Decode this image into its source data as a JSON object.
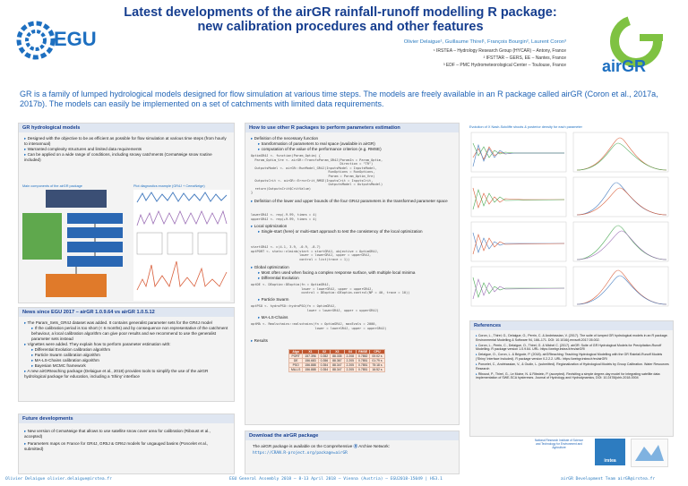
{
  "header": {
    "title_line1": "Latest developments of the airGR rainfall-runoff modelling R package:",
    "title_line2": "new calibration procedures and other features",
    "authors": "Olivier Delaigue¹, Guillaume Thirel¹, François Bourgin², Laurent Coron³",
    "affiliations": [
      "¹ IRSTEA – Hydrology Research Group (HYCAR) – Antony, France",
      "² IFSTTAR – GERS, EE – Nantes, France",
      "³ EDF – PMC Hydrometeorological Center – Toulouse, France"
    ],
    "egu_logo_text": "EGU",
    "airgr_logo_text": "airGR"
  },
  "intro": "GR is a family of lumped hydrological models designed for flow simulation at various time steps. The models are freely available in an R package called airGR (Coron et al., 2017a, 2017b). The models can easily be implemented on a set of catchments with limited data requirements.",
  "gr_panel": {
    "title": "GR hydrological models",
    "bullets": [
      "Designed with the objective to be as efficient as possible for flow simulation at various time steps (from hourly to interannual)",
      "Warranted complexity structures and limited data requirements",
      "Can be applied on a wide range of conditions, including snowy catchments (CemaNeige snow routine included)"
    ],
    "sub_left": "Main components of the airGR package",
    "sub_right": "Plot diagnostics example (GR4J + CemaNeige)"
  },
  "news_panel": {
    "title": "News since EGU 2017 – airGR 1.0.9.64 vs airGR 1.0.5.12",
    "lines": [
      "The Param_Sets_GR4J dataset was added. It contains generalist parameter sets for the GR4J model",
      "If the calibration period is too short (< 6 months) and by consequence non representative of the catchment behaviour, a local calibration algorithm can give poor results and we recommend to use the generalist parameter sets instead",
      "Vignettes were added. They explain how to perform parameter estimation with:",
      "Differential Evolution calibration algorithm",
      "Particle Swarm calibration algorithm",
      "MA-LS-Chains calibration algorithm",
      "Bayesian MCMC framework",
      "A new airGRteaching package (Delaigue et al., 2018) provides tools to simplify the use of the airGR hydrological package for education, including a 'Shiny' interface"
    ]
  },
  "future_panel": {
    "title": "Future developments",
    "lines": [
      "New version of CemaNeige that allows to use satellite snow cover area for calibration (Riboust et al., accepted)",
      "Parameters maps on France for GR4J, GR5J & GR6J models for ungauged basins (Poncelet et al., submitted)"
    ]
  },
  "howto_panel": {
    "title": "How to use other R packages to perform parameters estimation",
    "step1": "Definition of the necessary function",
    "step1_sub": [
      "transformation of parameters to real space (available in airGR)",
      "computation of the value of the performance criterion (e.g. RMSE)"
    ],
    "code1": "OptimGR4J <- function(Param_Optim) {\n  Param_Optim_Vre <- airGR::TransfoParam_GR4J(ParamIn = Param_Optim,\n                                              Direction = \"TR\")\n  OutputsModel <- airGR::RunModel_GR4J(InputsModel = InputsModel,\n                                        RunOptions = RunOptions,\n                                        Param = Param_Optim_Vre)\n  OutputsCrit <- airGR::ErrorCrit_RMSE(InputsCrit = InputsCrit,\n                                        OutputsModel = OutputsModel)\n  return(OutputsCrit$CritValue)\n}",
    "step2": "Definition of the lower and upper bounds of the four GR4J parameters in the transformed parameter space",
    "code2": "lowerGR4J <- rep(-9.99, times = 4)\nupperGR4J <- rep(+9.99, times = 4)",
    "step3": "Local optimization",
    "step3_sub": "Single-start (here) or multi-start approach to test the consistency of the local optimization",
    "code3": "startGR4J <- c(4.1, 3.9, -0.9, -8.7)\noptPORT <- stats::nlminb(start = startGR4J, objective = OptimGR4J,\n                         lower = lowerGR4J, upper = upperGR4J,\n                         control = list(trace = 1))",
    "step4": "Global optimization",
    "step4_sub": "Most often used when facing a complex response surface, with multiple local minima",
    "de_label": "Differential Evolution",
    "code4": "optDE <- DEoptim::DEoptim(fn = OptimGR4J,\n                          lower = lowerGR4J, upper = upperGR4J,\n                          control = DEoptim::DEoptim.control(NP = 40, trace = 10))",
    "ps_label": "Particle Swarm",
    "code5": "optPSO <- hydroPSO::hydroPSO(fn = OptimGR4J,\n                             lower = lowerGR4J, upper = upperGR4J)",
    "ma_label": "MA-LS-Chains",
    "code6": "optMA <- Rmalschains::malschains(fn = OptimGR4J, maxEvals = 2000,\n                                 lower = lowerGR4J, upper = upperGR4J)",
    "results_label": "Results",
    "table_headers": [
      "Algo",
      "X1",
      "X2",
      "X3",
      "X4",
      "RMSE",
      "CPU"
    ],
    "table_rows": [
      [
        "PORT",
        "157.396",
        "0.352",
        "88.335",
        "2.208",
        "0.7852",
        "00:02 s"
      ],
      [
        "DE",
        "156.683",
        "0.356",
        "88.367",
        "2.205",
        "0.7851",
        "01:79 s"
      ],
      [
        "PSO",
        "156.888",
        "0.354",
        "88.347",
        "2.205",
        "0.7851",
        "75:18 s"
      ],
      [
        "MA-LS",
        "156.888",
        "0.354",
        "88.347",
        "2.205",
        "0.7851",
        "16:52 s"
      ]
    ]
  },
  "download_panel": {
    "title": "Download the airGR package",
    "text": "The airGR package is available on the Comprehensive",
    "text_tail": "Archive Network:",
    "url": "https://CRAN.R-project.org/package=airGR"
  },
  "evolution": {
    "caption": "Evolution of X Nash-Sutcliffe shoots & posterior density for each parameter",
    "colors": [
      "#d95f3b",
      "#4daa57",
      "#4a7fc1",
      "#9c6fb6"
    ]
  },
  "references": {
    "title": "References",
    "items": [
      "Coron, L., Thirel, G., Delaigue, O., Perrin, C. & Andréassian, V. (2017). The suite of lumped GR hydrological models in an R package. Environmental Modelling & Software 94, 166–171. DOI: 10.1016/j.envsoft.2017.05.002.",
      "Coron, L., Perrin, C., Delaigue, O., Thirel, G. & Michel C. (2017). airGR: Suite of GR Hydrological Models for Precipitation-Runoff Modelling. R package version 1.0.9.64. URL: https://webgr.irstea.fr/en/airGR/",
      "Delaigue, O., Coron, L. & Brigode, P. (2018). airGRteaching: Teaching Hydrological Modelling with the GR Rainfall-Runoff Models ('Shiny' Interface Included). R package version 0.2.2.2. URL: https://webgr.irstea.fr/en/airGR/",
      "Poncelet, C., Andréassian, V., & Oudin, L. (submitted). Regionalization of Hydrological Models by Group Calibration. Water Resources Research",
      "Riboust, P., Thirel, G., Le Moine, N. & Ribstein, P. (accepted). Revisiting a simple degree-day model for integrating satellite data: implementation of SWE-SCA hystereses. Journal of Hydrology and Hydrodynamics, DOI: 10.2478/johh-2018-0004"
    ],
    "logo_edf": "National Research Institute of Science and Technology for Environment and Agriculture",
    "logo_irstea": "irstea"
  },
  "footer": {
    "left": "Olivier Delaigue olivier.delaigue@irstea.fr",
    "center": "EGU General Assembly 2018 – 8-13 April 2018 – Vienna (Austria) – EGU2018-15049 | HS3.1",
    "right": "airGR Development Team airGR@irstea.fr"
  }
}
